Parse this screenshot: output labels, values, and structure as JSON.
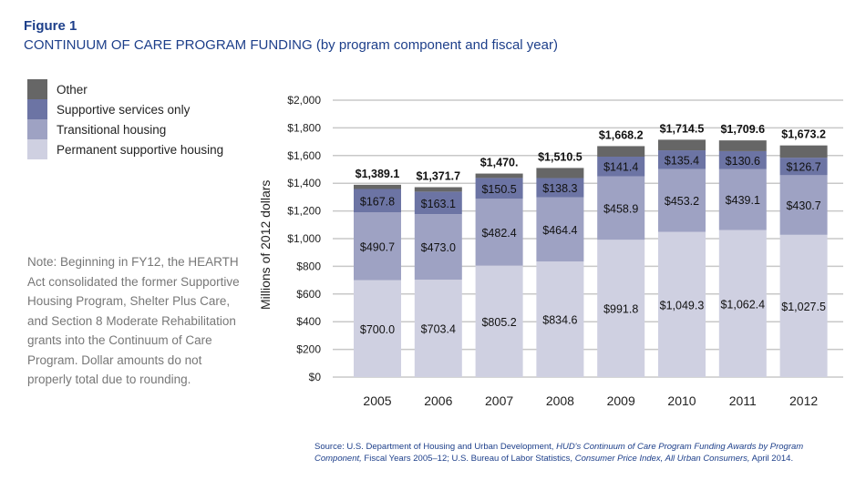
{
  "figure_label": "Figure 1",
  "title_main": "CONTINUUM OF CARE PROGRAM FUNDING",
  "title_sub": "(by program component and fiscal year)",
  "note": "Note: Beginning in FY12, the HEARTH Act consolidated the former Supportive Housing Program, Shelter Plus Care, and Section 8 Moderate Rehabilitation grants into the Continuum of Care Program. Dollar amounts do not properly total due to rounding.",
  "source_prefix": "Source: U.S. Department of Housing and Urban Development, ",
  "source_italic1": "HUD's Continuum of Care Program Funding Awards by Program Component,",
  "source_mid": " Fiscal Years 2005–12; U.S. Bureau of Labor Statistics, ",
  "source_italic2": "Consumer Price Index, All Urban Consumers,",
  "source_end": " April 2014.",
  "chart_data": {
    "type": "bar",
    "stacked": true,
    "title": "CONTINUUM OF CARE PROGRAM FUNDING (by program component and fiscal year)",
    "xlabel": "",
    "ylabel": "Millions of 2012 dollars",
    "ylim": [
      0,
      2000
    ],
    "yticks": [
      0,
      200,
      400,
      600,
      800,
      1000,
      1200,
      1400,
      1600,
      1800,
      2000
    ],
    "ytick_labels": [
      "$0",
      "$200",
      "$400",
      "$600",
      "$800",
      "$1,000",
      "$1,200",
      "$1,400",
      "$1,600",
      "$1,800",
      "$2,000"
    ],
    "grid": true,
    "legend_position": "top-left",
    "categories": [
      "2005",
      "2006",
      "2007",
      "2008",
      "2009",
      "2010",
      "2011",
      "2012"
    ],
    "series": [
      {
        "name": "Permanent supportive housing",
        "color": "#cfd0e1",
        "values": [
          700.0,
          703.4,
          805.2,
          834.6,
          991.8,
          1049.3,
          1062.4,
          1027.5
        ],
        "labels": [
          "$700.0",
          "$703.4",
          "$805.2",
          "$834.6",
          "$991.8",
          "$1,049.3",
          "$1,062.4",
          "$1,027.5"
        ]
      },
      {
        "name": "Transitional housing",
        "color": "#9ea2c3",
        "values": [
          490.7,
          473.0,
          482.4,
          464.4,
          458.9,
          453.2,
          439.1,
          430.7
        ],
        "labels": [
          "$490.7",
          "$473.0",
          "$482.4",
          "$464.4",
          "$458.9",
          "$453.2",
          "$439.1",
          "$430.7"
        ]
      },
      {
        "name": "Supportive services only",
        "color": "#6c74a4",
        "values": [
          167.8,
          163.1,
          150.5,
          138.3,
          141.4,
          135.4,
          130.6,
          126.7
        ],
        "labels": [
          "$167.8",
          "$163.1",
          "$150.5",
          "$138.3",
          "$141.4",
          "$135.4",
          "$130.6",
          "$126.7"
        ]
      },
      {
        "name": "Other",
        "color": "#666666",
        "values": [
          30.6,
          32.2,
          31.9,
          73.2,
          76.1,
          76.6,
          77.5,
          88.3
        ]
      }
    ],
    "totals": [
      1389.1,
      1371.7,
      1470.0,
      1510.5,
      1668.2,
      1714.5,
      1709.6,
      1673.2
    ],
    "total_labels": [
      "$1,389.1",
      "$1,371.7",
      "$1,470.",
      "$1,510.5",
      "$1,668.2",
      "$1,714.5",
      "$1,709.6",
      "$1,673.2"
    ]
  }
}
